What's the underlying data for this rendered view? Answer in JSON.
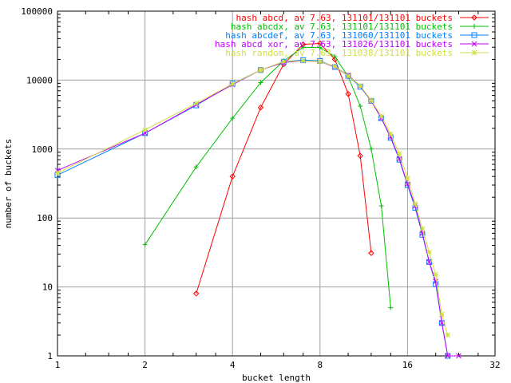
{
  "chart_data": {
    "type": "line",
    "title": "",
    "xlabel": "bucket length",
    "ylabel": "number of buckets",
    "x_scale": "log2",
    "y_scale": "log10",
    "xlim": [
      1,
      32
    ],
    "ylim": [
      1,
      100000
    ],
    "x_ticks": [
      1,
      2,
      4,
      8,
      16,
      32
    ],
    "x_tick_labels": [
      "1",
      "2",
      "4",
      "8",
      "16",
      "32"
    ],
    "y_ticks": [
      1,
      10,
      100,
      1000,
      10000,
      100000
    ],
    "y_tick_labels": [
      "1",
      "10",
      "100",
      "1000",
      "10000",
      "100000"
    ],
    "grid": true,
    "legend_position": "top-right",
    "series": [
      {
        "name": "hash abcd, av 7.63, 131101/131101 buckets",
        "color": "#ff0000",
        "marker": "diamond",
        "points": [
          [
            3,
            8
          ],
          [
            4,
            400
          ],
          [
            5,
            4000
          ],
          [
            6,
            17000
          ],
          [
            7,
            33000
          ],
          [
            8,
            34000
          ],
          [
            9,
            20000
          ],
          [
            10,
            6300
          ],
          [
            11,
            800
          ],
          [
            12,
            31
          ]
        ]
      },
      {
        "name": "hash abcdx, av 7.63, 131101/131101 buckets",
        "color": "#00c000",
        "marker": "plus",
        "points": [
          [
            2,
            41
          ],
          [
            3,
            550
          ],
          [
            4,
            2800
          ],
          [
            5,
            9200
          ],
          [
            6,
            19000
          ],
          [
            7,
            30000
          ],
          [
            8,
            29500
          ],
          [
            9,
            22000
          ],
          [
            10,
            11200
          ],
          [
            11,
            4200
          ],
          [
            12,
            1000
          ],
          [
            13,
            150
          ],
          [
            14,
            5
          ]
        ]
      },
      {
        "name": "hash abcdef, av 7.63, 131060/131101 buckets",
        "color": "#0080ff",
        "marker": "square",
        "points": [
          [
            1,
            420
          ],
          [
            2,
            1700
          ],
          [
            3,
            4300
          ],
          [
            4,
            8900
          ],
          [
            5,
            14000
          ],
          [
            6,
            18500
          ],
          [
            7,
            19500
          ],
          [
            8,
            19000
          ],
          [
            9,
            15500
          ],
          [
            10,
            11500
          ],
          [
            11,
            8000
          ],
          [
            12,
            5000
          ],
          [
            13,
            2800
          ],
          [
            14,
            1450
          ],
          [
            15,
            700
          ],
          [
            16,
            300
          ],
          [
            17,
            140
          ],
          [
            18,
            57
          ],
          [
            19,
            23
          ],
          [
            20,
            11
          ],
          [
            21,
            3
          ],
          [
            22,
            1
          ]
        ]
      },
      {
        "name": "hash abcd xor, av 7.63, 131026/131101 buckets",
        "color": "#c000ff",
        "marker": "cross",
        "points": [
          [
            1,
            490
          ],
          [
            2,
            1700
          ],
          [
            3,
            4400
          ],
          [
            4,
            8600
          ],
          [
            5,
            14000
          ],
          [
            6,
            18000
          ],
          [
            7,
            19000
          ],
          [
            8,
            18600
          ],
          [
            9,
            15500
          ],
          [
            10,
            11800
          ],
          [
            11,
            8200
          ],
          [
            12,
            5000
          ],
          [
            13,
            2800
          ],
          [
            14,
            1500
          ],
          [
            15,
            720
          ],
          [
            16,
            310
          ],
          [
            17,
            150
          ],
          [
            18,
            60
          ],
          [
            19,
            23
          ],
          [
            20,
            12
          ],
          [
            21,
            3
          ],
          [
            22,
            1
          ],
          [
            24,
            1
          ]
        ]
      },
      {
        "name": "hash random, av 7.63, 131038/131101 buckets",
        "color": "#d0e040",
        "marker": "star",
        "points": [
          [
            1,
            450
          ],
          [
            2,
            1900
          ],
          [
            3,
            4600
          ],
          [
            4,
            8800
          ],
          [
            5,
            14000
          ],
          [
            6,
            18500
          ],
          [
            7,
            19000
          ],
          [
            8,
            18500
          ],
          [
            9,
            15800
          ],
          [
            10,
            11500
          ],
          [
            11,
            8300
          ],
          [
            12,
            5100
          ],
          [
            13,
            3000
          ],
          [
            14,
            1650
          ],
          [
            15,
            850
          ],
          [
            16,
            380
          ],
          [
            17,
            160
          ],
          [
            18,
            70
          ],
          [
            19,
            32
          ],
          [
            20,
            15
          ],
          [
            21,
            4
          ],
          [
            22,
            2
          ]
        ]
      }
    ]
  }
}
